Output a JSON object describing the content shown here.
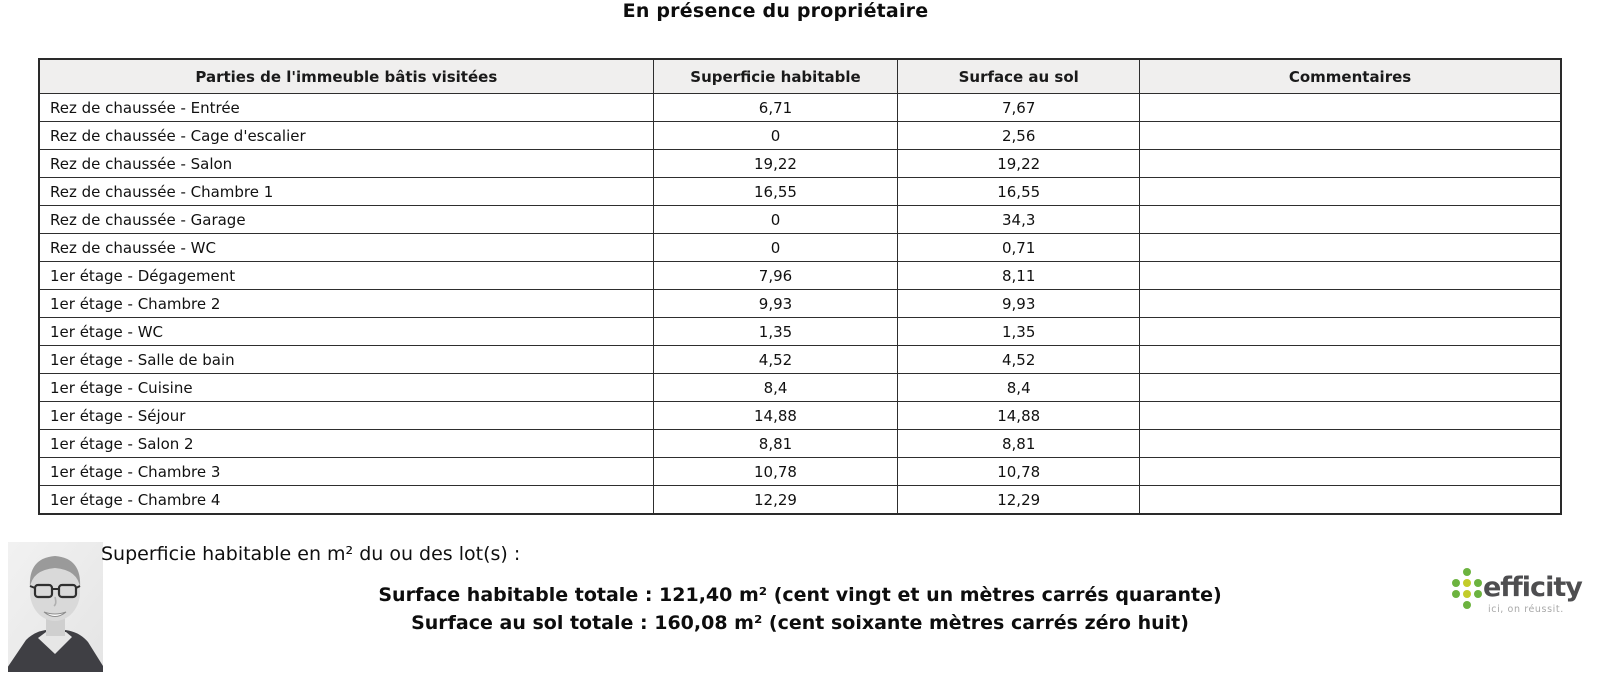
{
  "title": "En présence du propriétaire",
  "table": {
    "headers": [
      "Parties de l'immeuble bâtis visitées",
      "Superficie habitable",
      "Surface au sol",
      "Commentaires"
    ],
    "rows": [
      {
        "part": "Rez de chaussée - Entrée",
        "habitable": "6,71",
        "sol": "7,67",
        "comment": ""
      },
      {
        "part": "Rez de chaussée - Cage d'escalier",
        "habitable": "0",
        "sol": "2,56",
        "comment": ""
      },
      {
        "part": "Rez de chaussée - Salon",
        "habitable": "19,22",
        "sol": "19,22",
        "comment": ""
      },
      {
        "part": "Rez de chaussée - Chambre 1",
        "habitable": "16,55",
        "sol": "16,55",
        "comment": ""
      },
      {
        "part": "Rez de chaussée - Garage",
        "habitable": "0",
        "sol": "34,3",
        "comment": ""
      },
      {
        "part": "Rez de chaussée - WC",
        "habitable": "0",
        "sol": "0,71",
        "comment": ""
      },
      {
        "part": "1er étage - Dégagement",
        "habitable": "7,96",
        "sol": "8,11",
        "comment": ""
      },
      {
        "part": "1er étage - Chambre 2",
        "habitable": "9,93",
        "sol": "9,93",
        "comment": ""
      },
      {
        "part": "1er étage - WC",
        "habitable": "1,35",
        "sol": "1,35",
        "comment": ""
      },
      {
        "part": "1er étage - Salle de bain",
        "habitable": "4,52",
        "sol": "4,52",
        "comment": ""
      },
      {
        "part": "1er étage - Cuisine",
        "habitable": "8,4",
        "sol": "8,4",
        "comment": ""
      },
      {
        "part": "1er étage - Séjour",
        "habitable": "14,88",
        "sol": "14,88",
        "comment": ""
      },
      {
        "part": "1er étage - Salon 2",
        "habitable": "8,81",
        "sol": "8,81",
        "comment": ""
      },
      {
        "part": "1er étage - Chambre 3",
        "habitable": "10,78",
        "sol": "10,78",
        "comment": ""
      },
      {
        "part": "1er étage - Chambre 4",
        "habitable": "12,29",
        "sol": "12,29",
        "comment": ""
      }
    ]
  },
  "summary": {
    "lots_label": "Superficie habitable en m² du ou des lot(s) :",
    "total_habitable_line": "Surface habitable totale : 121,40 m² (cent vingt et un mètres carrés quarante)",
    "total_sol_line": "Surface au sol totale : 160,08 m² (cent soixante mètres carrés zéro huit)"
  },
  "branding": {
    "logo_text": "efficity",
    "tagline": "ici, on réussit.",
    "colors": {
      "green": "#6cb33f",
      "yellow": "#c3cc2a",
      "logo_text": "#4e4e50",
      "tagline": "#a8a8a8"
    },
    "dot_pattern": [
      [
        "",
        "g",
        ""
      ],
      [
        "g",
        "y",
        "g"
      ],
      [
        "g",
        "y",
        "g"
      ],
      [
        "",
        "g",
        ""
      ]
    ]
  }
}
